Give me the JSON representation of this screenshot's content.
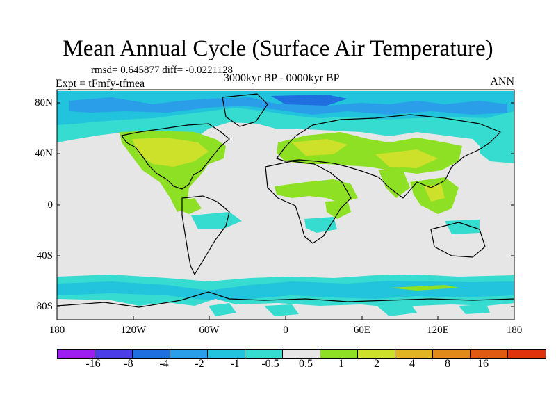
{
  "title": "Mean Annual Cycle (Surface Air Temperature)",
  "stats": "rmsd= 0.645877 diff= -0.0221128",
  "experiment": "Expt = tFmfy-tfmea",
  "period": "3000kyr BP - 0000kyr BP",
  "season": "ANN",
  "lat_labels": [
    "80N",
    "40N",
    "0",
    "40S",
    "80S"
  ],
  "lon_labels": [
    "180",
    "120W",
    "60W",
    "0",
    "60E",
    "120E",
    "180"
  ],
  "legend": {
    "labels": [
      "-16",
      "-8",
      "-4",
      "-2",
      "-1",
      "-0.5",
      "0.5",
      "1",
      "2",
      "4",
      "8",
      "16"
    ],
    "colors": [
      "#9e1df0",
      "#4b3ee8",
      "#1f6fe0",
      "#2a9ee8",
      "#22c3dc",
      "#37dcd0",
      "#e6e6e6",
      "#8ee024",
      "#cde02a",
      "#e0b422",
      "#e08a1a",
      "#e05a12",
      "#e0320c"
    ]
  },
  "colors": {
    "land_neutral": "#e6e6e6",
    "cool_light": "#37dcd0",
    "cool_mid": "#22c3dc",
    "cool_dark": "#2a9ee8",
    "cool_deep": "#1f6fe0",
    "warm_light": "#8ee024",
    "warm_mid": "#cde02a",
    "warm_strong": "#e0b422"
  }
}
